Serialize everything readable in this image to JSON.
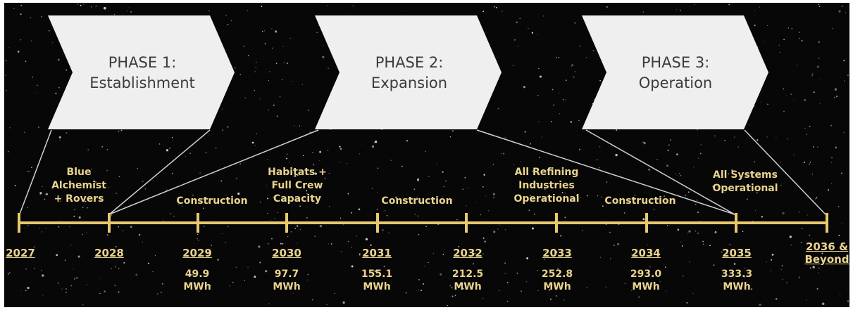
{
  "colors": {
    "background": "#070707",
    "timeline": "#e7c86d",
    "label": "#e9d48e",
    "chevron": "#efefef",
    "chevron_text": "#3c3c3c",
    "connector": "#cfcfcf"
  },
  "phases": [
    {
      "line1": "PHASE 1:",
      "line2": "Establishment"
    },
    {
      "line1": "PHASE 2:",
      "line2": "Expansion"
    },
    {
      "line1": "PHASE 3:",
      "line2": "Operation"
    }
  ],
  "events": [
    {
      "lines": [
        "Blue",
        "Alchemist",
        "+ Rovers"
      ]
    },
    {
      "lines": [
        "Construction"
      ]
    },
    {
      "lines": [
        "Habitats +",
        "Full Crew",
        "Capacity"
      ]
    },
    {
      "lines": [
        "Construction"
      ]
    },
    {
      "lines": [
        "All Refining",
        "Industries",
        "Operational"
      ]
    },
    {
      "lines": [
        "Construction"
      ]
    },
    {
      "lines": [
        "All Systems",
        "Operational"
      ]
    }
  ],
  "years": [
    {
      "lines": [
        "2027"
      ],
      "energy": null
    },
    {
      "lines": [
        "2028"
      ],
      "energy": null
    },
    {
      "lines": [
        "2029"
      ],
      "energy": [
        "49.9",
        "MWh"
      ]
    },
    {
      "lines": [
        "2030"
      ],
      "energy": [
        "97.7",
        "MWh"
      ]
    },
    {
      "lines": [
        "2031"
      ],
      "energy": [
        "155.1",
        "MWh"
      ]
    },
    {
      "lines": [
        "2032"
      ],
      "energy": [
        "212.5",
        "MWh"
      ]
    },
    {
      "lines": [
        "2033"
      ],
      "energy": [
        "252.8",
        "MWh"
      ]
    },
    {
      "lines": [
        "2034"
      ],
      "energy": [
        "293.0",
        "MWh"
      ]
    },
    {
      "lines": [
        "2035"
      ],
      "energy": [
        "333.3",
        "MWh"
      ]
    },
    {
      "lines": [
        "2036 &",
        "Beyond"
      ],
      "energy": null
    }
  ]
}
